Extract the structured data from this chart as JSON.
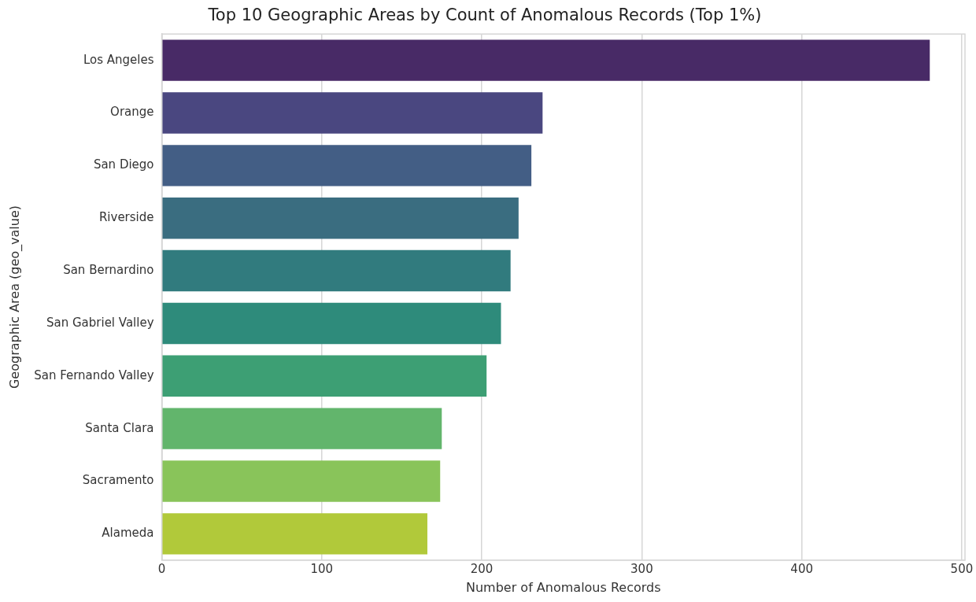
{
  "chart_data": {
    "type": "bar",
    "orientation": "horizontal",
    "title": "Top 10 Geographic Areas by Count of Anomalous Records (Top 1%)",
    "xlabel": "Number of Anomalous Records",
    "ylabel": "Geographic Area (geo_value)",
    "categories": [
      "Los Angeles",
      "Orange",
      "San Diego",
      "Riverside",
      "San Bernardino",
      "San Gabriel Valley",
      "San Fernando Valley",
      "Santa Clara",
      "Sacramento",
      "Alameda"
    ],
    "values": [
      480,
      238,
      231,
      223,
      218,
      212,
      203,
      175,
      174,
      166
    ],
    "colors": [
      "#482a66",
      "#4a4780",
      "#435e85",
      "#3a6d80",
      "#317b7e",
      "#2e8b7b",
      "#3d9f74",
      "#62b56c",
      "#89c45a",
      "#b1c93a"
    ],
    "xlim": [
      0,
      502
    ],
    "xticks": [
      0,
      100,
      200,
      300,
      400,
      500
    ],
    "grid": "x",
    "legend": false
  }
}
